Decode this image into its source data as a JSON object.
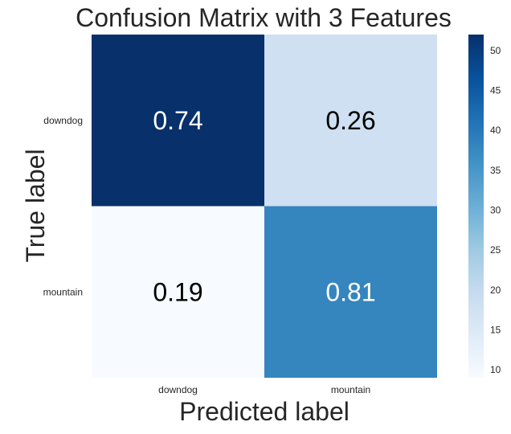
{
  "chart_data": {
    "type": "heatmap",
    "title": "Confusion Matrix with 3 Features",
    "xlabel": "Predicted label",
    "ylabel": "True label",
    "x_categories": [
      "downdog",
      "mountain"
    ],
    "y_categories": [
      "downdog",
      "mountain"
    ],
    "annotations": [
      [
        "0.74",
        "0.26"
      ],
      [
        "0.19",
        "0.81"
      ]
    ],
    "counts": [
      [
        52,
        18
      ],
      [
        9,
        38
      ]
    ],
    "colorbar": {
      "min": 9,
      "max": 52,
      "ticks": [
        10,
        15,
        20,
        25,
        30,
        35,
        40,
        45,
        50
      ],
      "colormap": "Blues"
    },
    "grid": false
  }
}
